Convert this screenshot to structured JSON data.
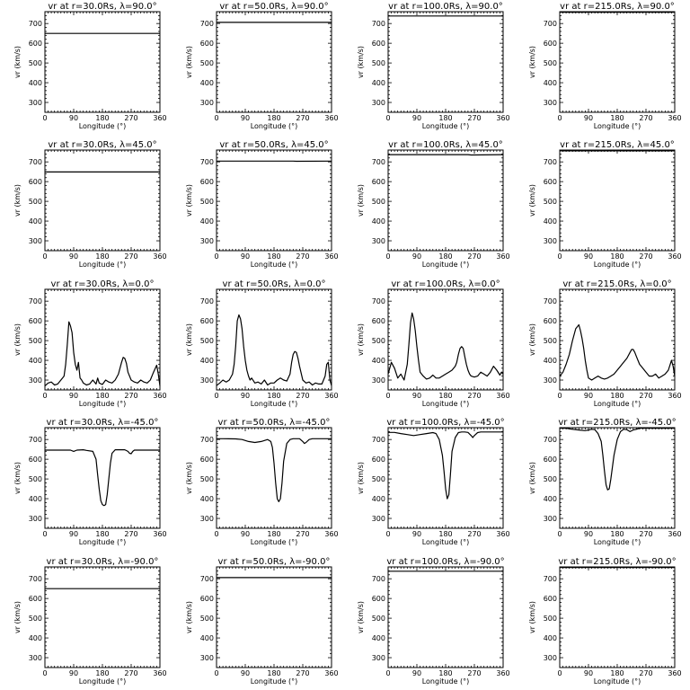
{
  "chart_data": {
    "type": "line",
    "layout": "5x4 grid",
    "xlabel": "Longitude (°)",
    "ylabel": "vr (km/s)",
    "xlim": [
      0,
      360
    ],
    "ylim": [
      250,
      760
    ],
    "xticks": [
      0,
      90,
      180,
      270,
      360
    ],
    "yticks": [
      300,
      400,
      500,
      600,
      700
    ],
    "line_color": "#000000",
    "panels": [
      {
        "row": 0,
        "col": 0,
        "title": "vr at r=30.0Rs, λ=90.0°",
        "x": [
          0,
          360
        ],
        "y": [
          650,
          650
        ]
      },
      {
        "row": 0,
        "col": 1,
        "title": "vr at r=50.0Rs, λ=90.0°",
        "x": [
          0,
          360
        ],
        "y": [
          706,
          706
        ]
      },
      {
        "row": 0,
        "col": 2,
        "title": "vr at r=100.0Rs, λ=90.0°",
        "x": [
          0,
          360
        ],
        "y": [
          738,
          738
        ]
      },
      {
        "row": 0,
        "col": 3,
        "title": "vr at r=215.0Rs, λ=90.0°",
        "x": [
          0,
          360
        ],
        "y": [
          757,
          757
        ]
      },
      {
        "row": 1,
        "col": 0,
        "title": "vr at r=30.0Rs, λ=45.0°",
        "x": [
          0,
          360
        ],
        "y": [
          649,
          649
        ]
      },
      {
        "row": 1,
        "col": 1,
        "title": "vr at r=50.0Rs, λ=45.0°",
        "x": [
          0,
          240,
          250,
          360
        ],
        "y": [
          704,
          704,
          703,
          704
        ]
      },
      {
        "row": 1,
        "col": 2,
        "title": "vr at r=100.0Rs, λ=45.0°",
        "x": [
          0,
          250,
          260,
          360
        ],
        "y": [
          737,
          737,
          735,
          737
        ]
      },
      {
        "row": 1,
        "col": 3,
        "title": "vr at r=215.0Rs, λ=45.0°",
        "x": [
          0,
          360
        ],
        "y": [
          756,
          756
        ]
      },
      {
        "row": 2,
        "col": 0,
        "title": "vr at r=30.0Rs, λ=0.0°",
        "x": [
          0,
          10,
          20,
          30,
          40,
          50,
          60,
          65,
          70,
          75,
          80,
          85,
          90,
          95,
          100,
          105,
          110,
          115,
          120,
          130,
          140,
          150,
          160,
          165,
          170,
          180,
          190,
          200,
          210,
          220,
          230,
          240,
          245,
          250,
          255,
          260,
          270,
          280,
          290,
          300,
          310,
          320,
          330,
          340,
          350,
          355,
          360
        ],
        "y": [
          270,
          285,
          290,
          275,
          280,
          300,
          320,
          380,
          480,
          595,
          575,
          540,
          440,
          380,
          350,
          390,
          310,
          300,
          285,
          275,
          280,
          300,
          280,
          310,
          285,
          278,
          300,
          290,
          285,
          300,
          330,
          390,
          415,
          410,
          385,
          340,
          300,
          290,
          285,
          300,
          290,
          285,
          300,
          340,
          375,
          330,
          270
        ]
      },
      {
        "row": 2,
        "col": 1,
        "title": "vr at r=50.0Rs, λ=0.0°",
        "x": [
          0,
          10,
          20,
          30,
          40,
          50,
          55,
          60,
          65,
          70,
          75,
          80,
          85,
          90,
          95,
          100,
          105,
          110,
          120,
          130,
          140,
          150,
          160,
          170,
          180,
          190,
          200,
          210,
          220,
          230,
          235,
          240,
          245,
          250,
          255,
          260,
          270,
          280,
          290,
          300,
          310,
          320,
          330,
          340,
          345,
          350,
          355,
          360
        ],
        "y": [
          272,
          285,
          300,
          290,
          300,
          330,
          380,
          470,
          600,
          630,
          610,
          560,
          470,
          400,
          350,
          320,
          300,
          310,
          285,
          290,
          280,
          300,
          275,
          285,
          285,
          300,
          310,
          300,
          295,
          330,
          390,
          430,
          445,
          440,
          410,
          370,
          300,
          285,
          290,
          275,
          285,
          280,
          280,
          320,
          380,
          390,
          300,
          272
        ]
      },
      {
        "row": 2,
        "col": 2,
        "title": "vr at r=100.0Rs, λ=0.0°",
        "x": [
          0,
          10,
          20,
          30,
          40,
          50,
          60,
          65,
          70,
          75,
          80,
          85,
          90,
          95,
          100,
          110,
          120,
          130,
          140,
          150,
          160,
          170,
          180,
          190,
          200,
          210,
          215,
          220,
          225,
          230,
          235,
          240,
          245,
          250,
          255,
          260,
          270,
          280,
          290,
          300,
          310,
          320,
          330,
          340,
          350,
          355,
          360
        ],
        "y": [
          330,
          390,
          360,
          310,
          330,
          300,
          380,
          480,
          590,
          640,
          610,
          550,
          470,
          400,
          340,
          320,
          305,
          310,
          325,
          310,
          310,
          320,
          330,
          340,
          350,
          370,
          390,
          430,
          460,
          470,
          460,
          420,
          380,
          350,
          330,
          320,
          315,
          320,
          340,
          330,
          320,
          340,
          370,
          350,
          325,
          340,
          330
        ]
      },
      {
        "row": 2,
        "col": 3,
        "title": "vr at r=215.0Rs, λ=0.0°",
        "x": [
          0,
          10,
          20,
          30,
          40,
          50,
          60,
          65,
          70,
          75,
          80,
          85,
          90,
          100,
          110,
          120,
          130,
          140,
          150,
          160,
          170,
          180,
          190,
          200,
          210,
          220,
          225,
          230,
          235,
          240,
          245,
          250,
          260,
          270,
          280,
          290,
          300,
          310,
          320,
          330,
          340,
          350,
          355,
          360
        ],
        "y": [
          320,
          340,
          380,
          430,
          500,
          560,
          580,
          550,
          510,
          460,
          400,
          350,
          310,
          300,
          310,
          320,
          310,
          305,
          310,
          320,
          330,
          350,
          370,
          390,
          410,
          440,
          455,
          455,
          440,
          420,
          400,
          380,
          360,
          340,
          320,
          320,
          330,
          310,
          320,
          330,
          350,
          400,
          370,
          320
        ]
      },
      {
        "row": 3,
        "col": 0,
        "title": "vr at r=30.0Rs, λ=-45.0°",
        "x": [
          0,
          80,
          90,
          100,
          120,
          130,
          150,
          160,
          165,
          170,
          175,
          180,
          185,
          190,
          195,
          200,
          205,
          210,
          220,
          230,
          240,
          250,
          260,
          265,
          270,
          275,
          280,
          290,
          300,
          360
        ],
        "y": [
          646,
          646,
          640,
          646,
          648,
          645,
          640,
          600,
          520,
          450,
          390,
          370,
          365,
          370,
          420,
          500,
          580,
          630,
          648,
          648,
          648,
          648,
          640,
          630,
          628,
          640,
          646,
          646,
          646,
          646
        ]
      },
      {
        "row": 3,
        "col": 1,
        "title": "vr at r=50.0Rs, λ=-45.0°",
        "x": [
          0,
          20,
          60,
          80,
          100,
          120,
          140,
          160,
          170,
          175,
          180,
          185,
          190,
          195,
          200,
          205,
          210,
          220,
          230,
          240,
          250,
          260,
          270,
          275,
          280,
          290,
          300,
          360
        ],
        "y": [
          704,
          704,
          703,
          700,
          690,
          685,
          690,
          700,
          690,
          660,
          580,
          480,
          400,
          385,
          400,
          480,
          590,
          680,
          700,
          704,
          704,
          704,
          690,
          680,
          685,
          700,
          704,
          704
        ]
      },
      {
        "row": 3,
        "col": 2,
        "title": "vr at r=100.0Rs, λ=-45.0°",
        "x": [
          0,
          20,
          40,
          60,
          80,
          100,
          120,
          140,
          150,
          160,
          170,
          175,
          180,
          185,
          190,
          195,
          200,
          210,
          220,
          230,
          240,
          250,
          260,
          265,
          270,
          280,
          290,
          300,
          360
        ],
        "y": [
          736,
          736,
          730,
          725,
          720,
          725,
          730,
          735,
          730,
          700,
          620,
          540,
          450,
          400,
          420,
          520,
          640,
          710,
          735,
          738,
          738,
          736,
          720,
          710,
          720,
          735,
          738,
          738,
          738
        ]
      },
      {
        "row": 3,
        "col": 3,
        "title": "vr at r=215.0Rs, λ=-45.0°",
        "x": [
          0,
          20,
          40,
          60,
          80,
          100,
          110,
          120,
          130,
          135,
          140,
          145,
          150,
          155,
          160,
          170,
          180,
          190,
          200,
          210,
          220,
          230,
          240,
          250,
          260,
          270,
          280,
          300,
          360
        ],
        "y": [
          757,
          757,
          752,
          748,
          745,
          752,
          750,
          730,
          690,
          620,
          540,
          470,
          445,
          450,
          500,
          620,
          700,
          740,
          752,
          750,
          740,
          748,
          752,
          757,
          757,
          757,
          757,
          757,
          757
        ]
      },
      {
        "row": 4,
        "col": 0,
        "title": "vr at r=30.0Rs, λ=-90.0°",
        "x": [
          0,
          360
        ],
        "y": [
          650,
          650
        ]
      },
      {
        "row": 4,
        "col": 1,
        "title": "vr at r=50.0Rs, λ=-90.0°",
        "x": [
          0,
          360
        ],
        "y": [
          706,
          706
        ]
      },
      {
        "row": 4,
        "col": 2,
        "title": "vr at r=100.0Rs, λ=-90.0°",
        "x": [
          0,
          360
        ],
        "y": [
          738,
          738
        ]
      },
      {
        "row": 4,
        "col": 3,
        "title": "vr at r=215.0Rs, λ=-90.0°",
        "x": [
          0,
          360
        ],
        "y": [
          757,
          757
        ]
      }
    ]
  }
}
